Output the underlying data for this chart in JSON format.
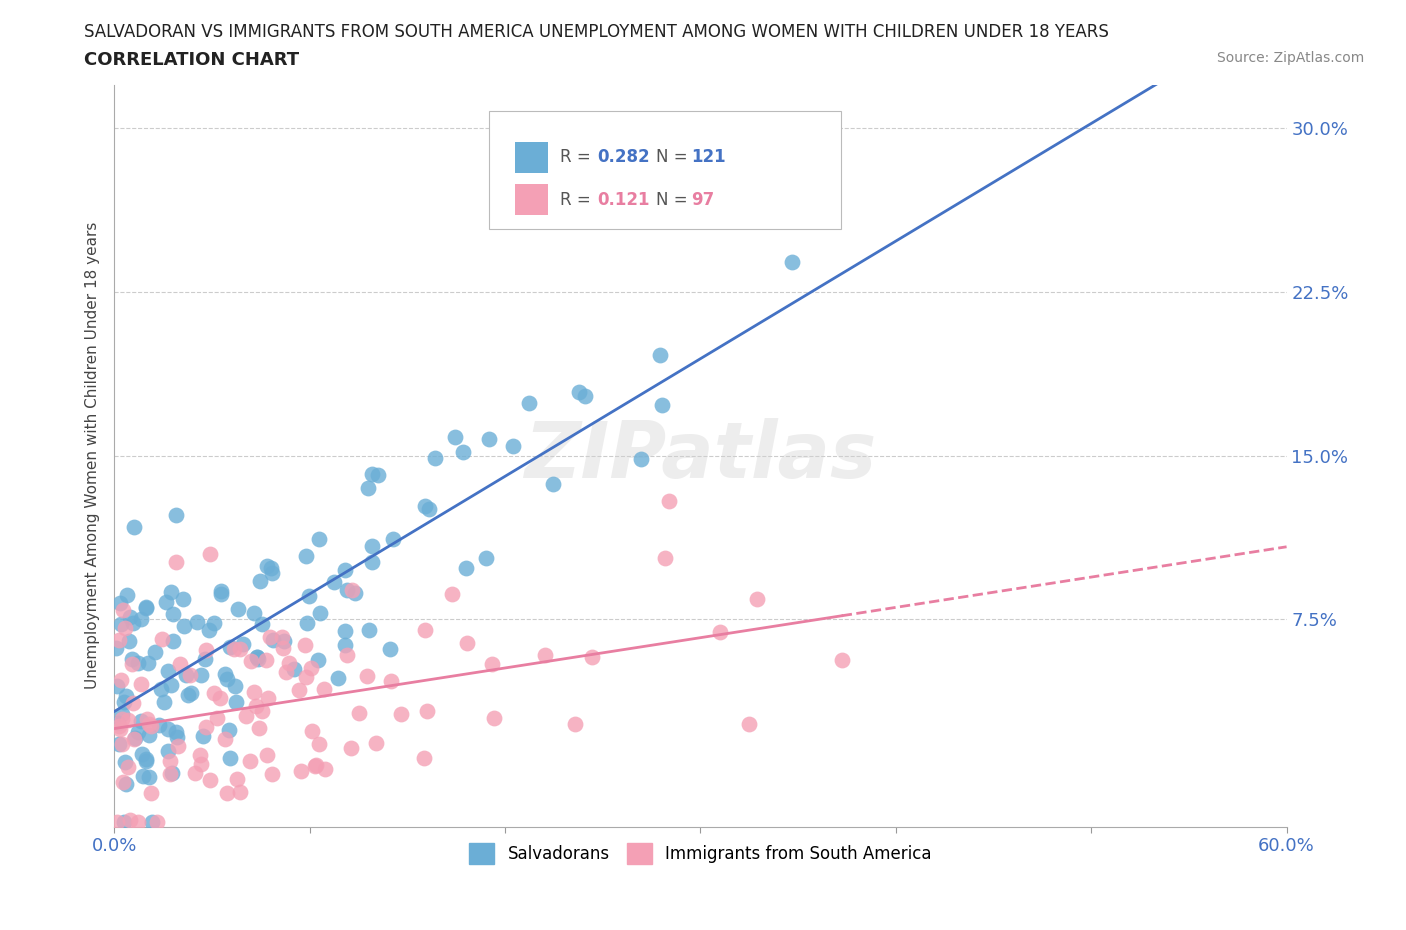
{
  "title_line1": "SALVADORAN VS IMMIGRANTS FROM SOUTH AMERICA UNEMPLOYMENT AMONG WOMEN WITH CHILDREN UNDER 18 YEARS",
  "title_line2": "CORRELATION CHART",
  "source_text": "Source: ZipAtlas.com",
  "ylabel": "Unemployment Among Women with Children Under 18 years",
  "xlim": [
    0.0,
    0.6
  ],
  "ylim": [
    -0.02,
    0.32
  ],
  "xticks": [
    0.0,
    0.1,
    0.2,
    0.3,
    0.4,
    0.5,
    0.6
  ],
  "yticks": [
    0.0,
    0.075,
    0.15,
    0.225,
    0.3
  ],
  "ytick_labels": [
    "",
    "7.5%",
    "15.0%",
    "22.5%",
    "30.0%"
  ],
  "xtick_labels": [
    "0.0%",
    "",
    "",
    "",
    "",
    "",
    "60.0%"
  ],
  "color_blue": "#6baed6",
  "color_pink": "#f4a0b5",
  "trendline_blue": "#4472c4",
  "trendline_pink": "#e87ea1",
  "R_blue": 0.282,
  "N_blue": 121,
  "R_pink": 0.121,
  "N_pink": 97,
  "watermark": "ZIPatlas",
  "legend_labels": [
    "Salvadorans",
    "Immigrants from South America"
  ],
  "grid_color": "#cccccc",
  "background_color": "#ffffff",
  "seed": 42,
  "title_fontsize": 12,
  "subtitle_fontsize": 13,
  "source_fontsize": 10
}
